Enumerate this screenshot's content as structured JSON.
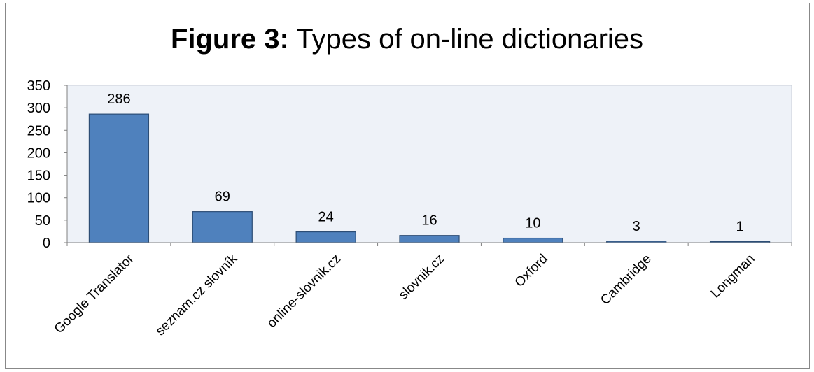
{
  "title": {
    "bold": "Figure 3:",
    "rest": "Types of on-line dictionaries"
  },
  "colors": {
    "bar_fill": "#4f81bd",
    "bar_stroke": "#2c4d75",
    "plot_background": "#eef2f8"
  },
  "chart_data": {
    "type": "bar",
    "title": "Figure 3: Types of on-line dictionaries",
    "categories": [
      "Google Translator",
      "seznam.cz slovník",
      "online-slovnik.cz",
      "slovnik.cz",
      "Oxford",
      "Cambridge",
      "Longman"
    ],
    "values": [
      286,
      69,
      24,
      16,
      10,
      3,
      1
    ],
    "xlabel": "",
    "ylabel": "",
    "ylim": [
      0,
      350
    ],
    "yticks": [
      0,
      50,
      100,
      150,
      200,
      250,
      300,
      350
    ],
    "data_labels": true,
    "legend": "none",
    "grid": false
  }
}
